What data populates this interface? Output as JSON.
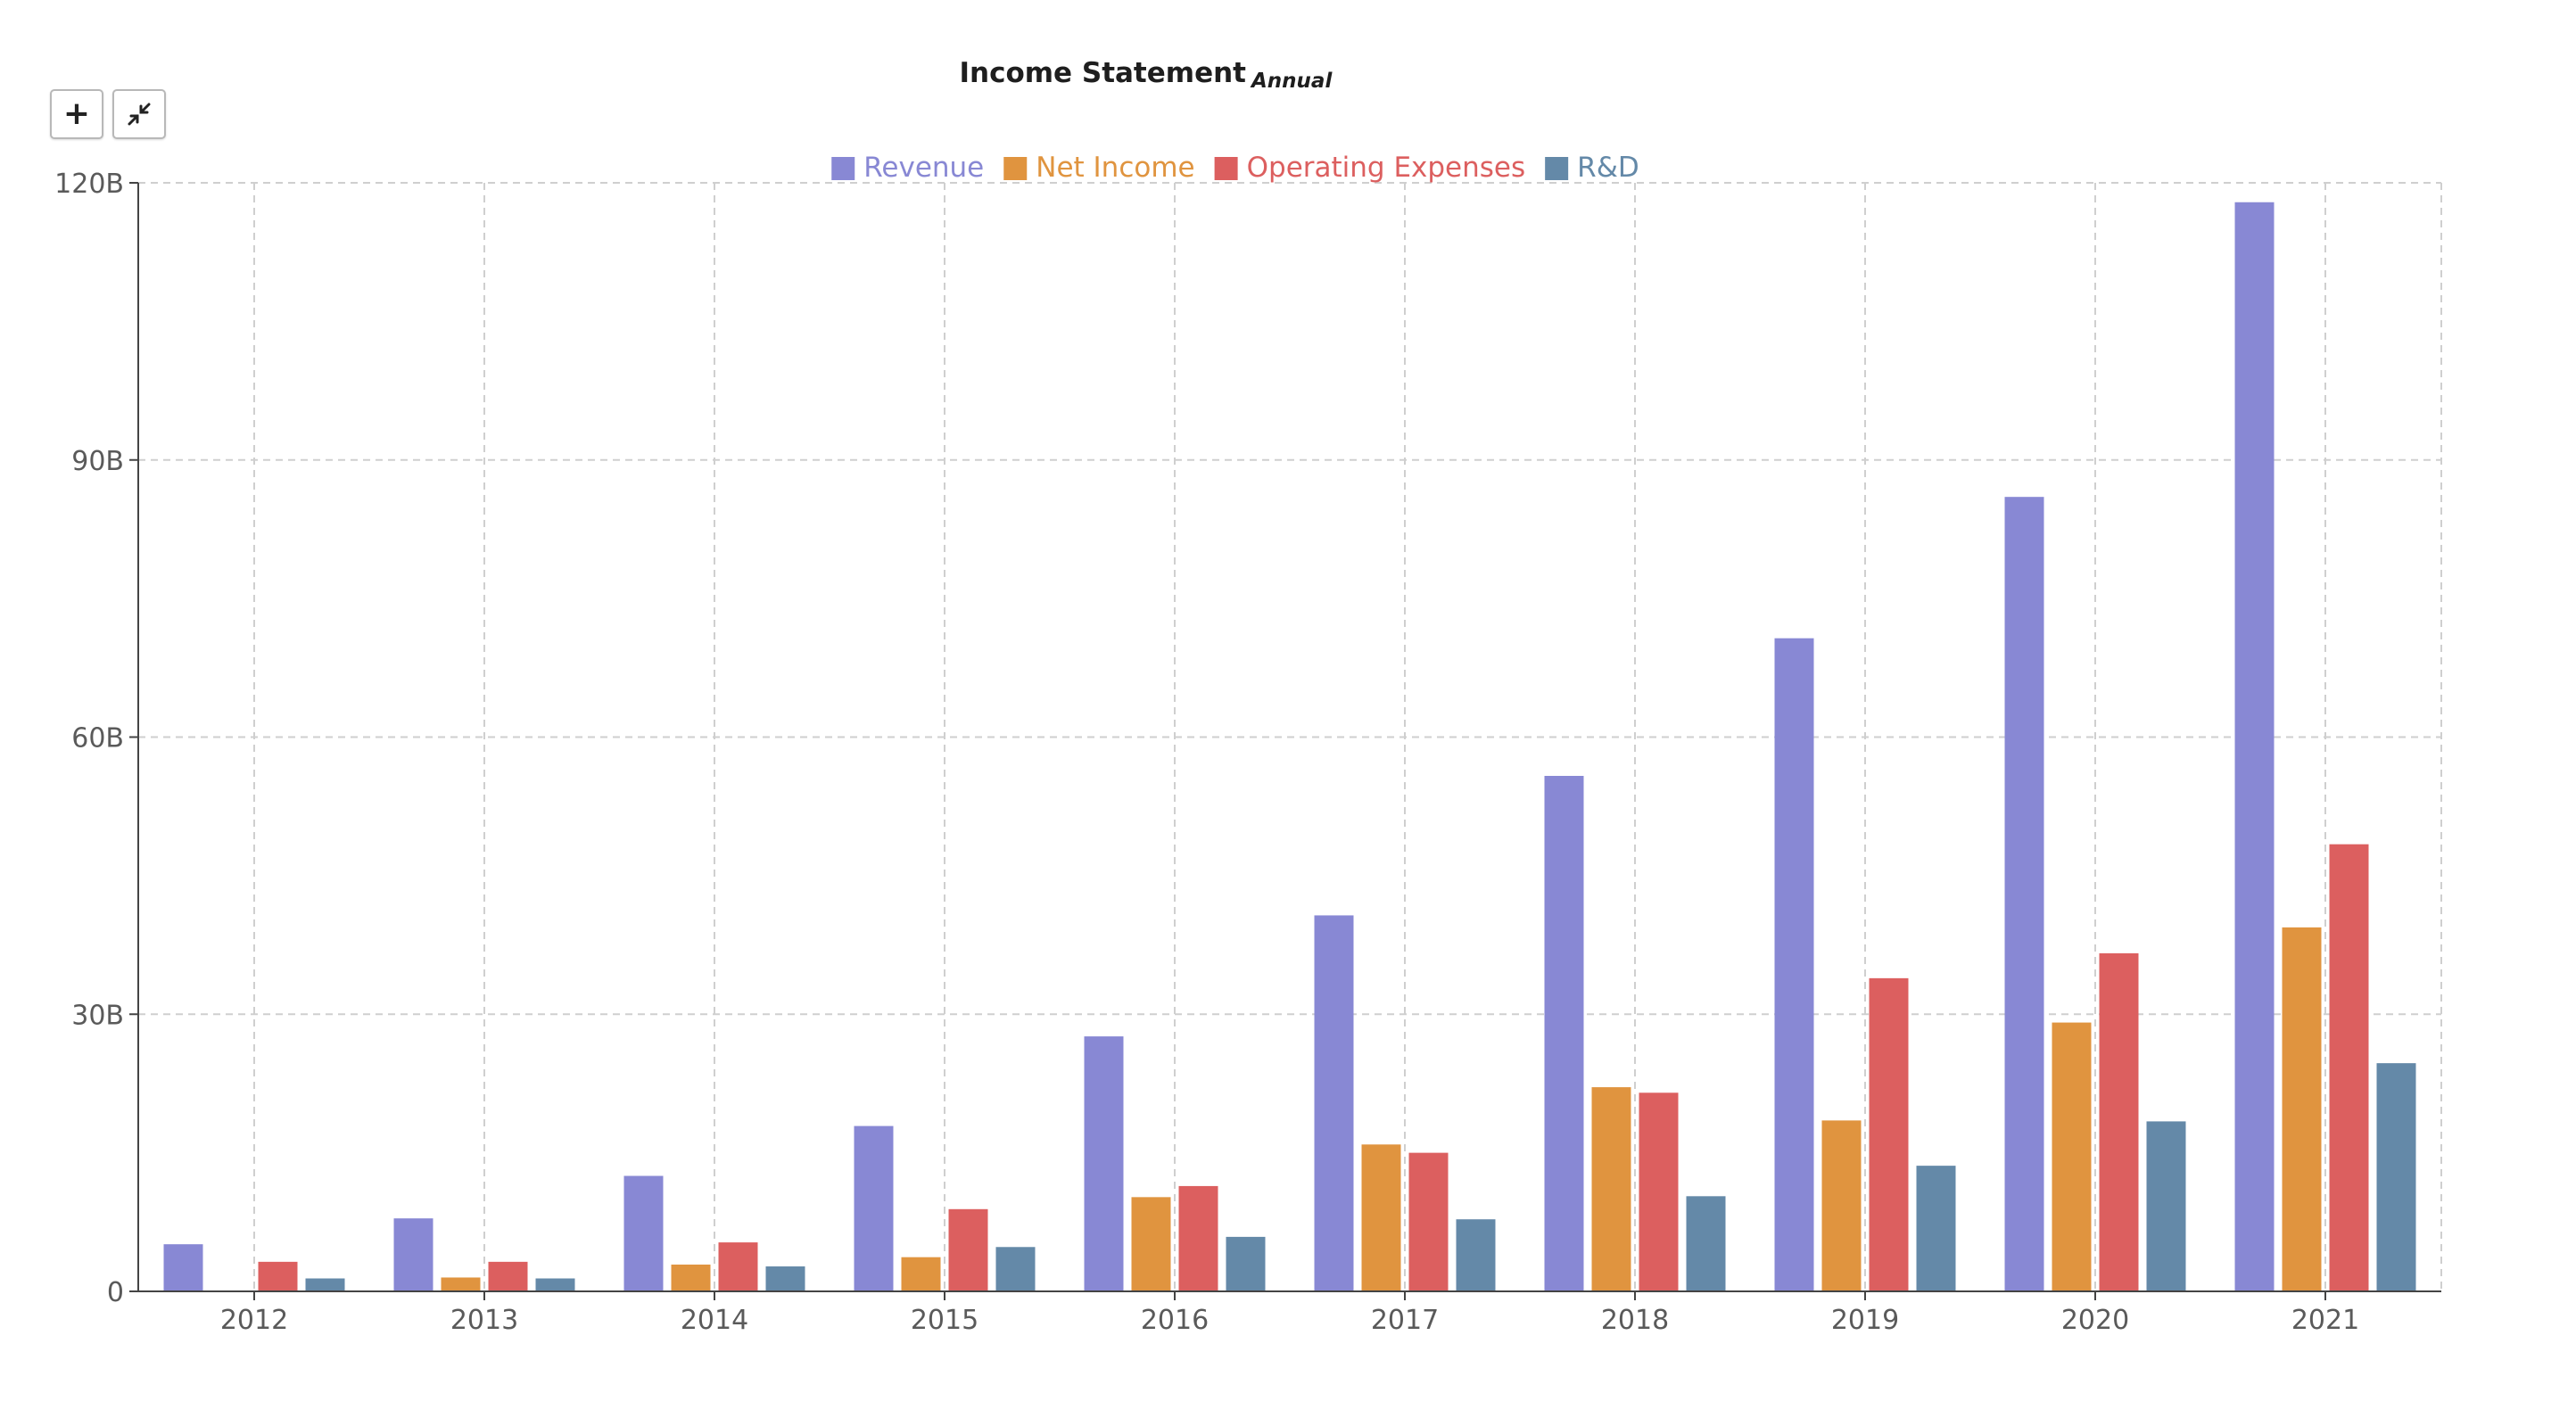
{
  "toolbar": {
    "zoom_in_glyph": "+"
  },
  "chart_data": {
    "type": "bar",
    "title": "Income Statement",
    "subtitle": "Annual",
    "categories": [
      "2012",
      "2013",
      "2014",
      "2015",
      "2016",
      "2017",
      "2018",
      "2019",
      "2020",
      "2021"
    ],
    "series": [
      {
        "name": "Revenue",
        "color": "#8888d4",
        "values": [
          5.1,
          7.9,
          12.5,
          17.9,
          27.6,
          40.7,
          55.8,
          70.7,
          86.0,
          117.9
        ]
      },
      {
        "name": "Net Income",
        "color": "#e0943f",
        "values": [
          0.05,
          1.5,
          2.9,
          3.7,
          10.2,
          15.9,
          22.1,
          18.5,
          29.1,
          39.4
        ]
      },
      {
        "name": "Operating Expenses",
        "color": "#dc5f5f",
        "values": [
          3.2,
          3.2,
          5.3,
          8.9,
          11.4,
          15.0,
          21.5,
          33.9,
          36.6,
          48.4
        ]
      },
      {
        "name": "R&D",
        "color": "#6489a8",
        "values": [
          1.4,
          1.4,
          2.7,
          4.8,
          5.9,
          7.8,
          10.3,
          13.6,
          18.4,
          24.7
        ]
      }
    ],
    "yticks": [
      "0",
      "30B",
      "60B",
      "90B",
      "120B"
    ],
    "ytick_values": [
      0,
      30,
      60,
      90,
      120
    ],
    "ylim": [
      0,
      120
    ],
    "grid": true,
    "legend_position": "top-center"
  }
}
